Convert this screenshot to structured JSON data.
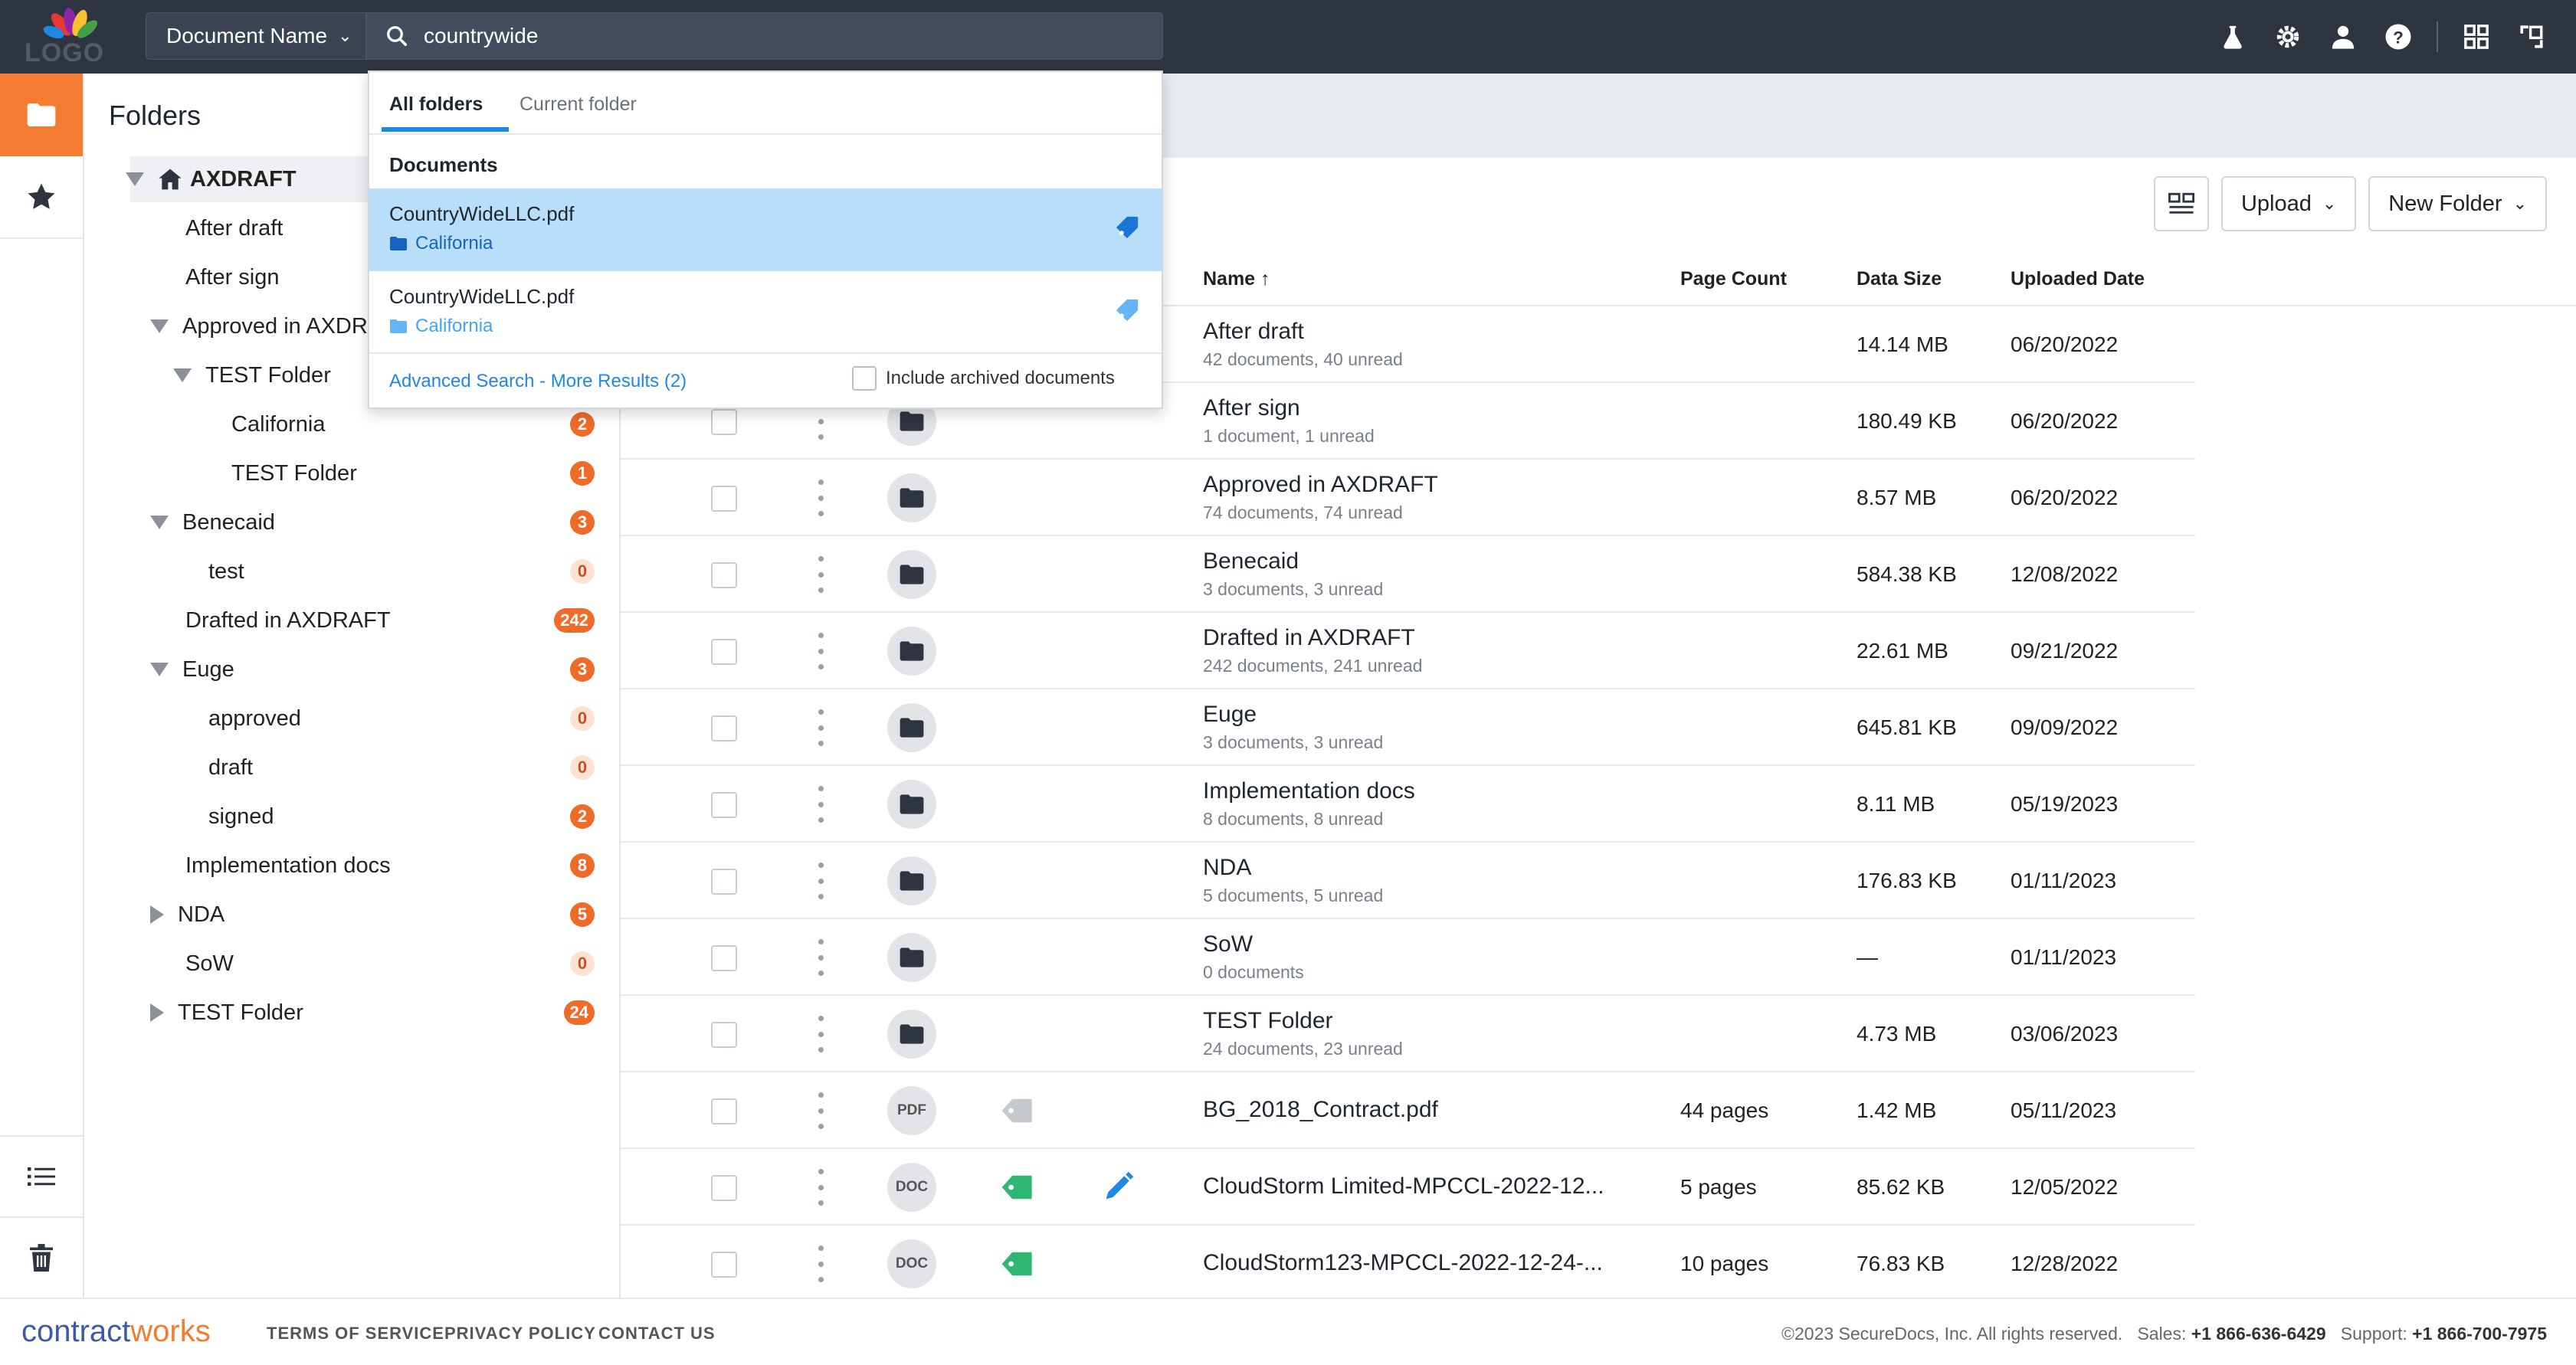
{
  "colors": {
    "accent": "#f47c30",
    "link": "#1e88e5",
    "topbar": "#2e3440",
    "selected": "#b9def9",
    "badge": "#f06a2a",
    "tag_green": "#2eb872"
  },
  "topbar": {
    "logo_text": "LOGO",
    "doc_select_label": "Document Name",
    "search_value": "countrywide",
    "icons": [
      "flask-icon",
      "gear-icon",
      "user-icon",
      "help-icon",
      "apps-icon",
      "expand-icon"
    ]
  },
  "folders": {
    "title": "Folders",
    "items": [
      {
        "label": "AXDRAFT",
        "level": 0,
        "expander": "down",
        "badge": ""
      },
      {
        "label": "After draft",
        "level": 1,
        "expander": "",
        "badge": ""
      },
      {
        "label": "After sign",
        "level": 1,
        "expander": "",
        "badge": ""
      },
      {
        "label": "Approved in AXDRAFT",
        "level": 1,
        "expander": "down",
        "badge": ""
      },
      {
        "label": "TEST Folder",
        "level": 2,
        "expander": "down",
        "badge": ""
      },
      {
        "label": "California",
        "level": 3,
        "expander": "",
        "badge": "2"
      },
      {
        "label": "TEST Folder",
        "level": 3,
        "expander": "",
        "badge": "1"
      },
      {
        "label": "Benecaid",
        "level": 1,
        "expander": "down",
        "badge": "3"
      },
      {
        "label": "test",
        "level": 2,
        "expander": "",
        "badge": "0"
      },
      {
        "label": "Drafted in AXDRAFT",
        "level": 1,
        "expander": "",
        "badge": "242"
      },
      {
        "label": "Euge",
        "level": 1,
        "expander": "down",
        "badge": "3"
      },
      {
        "label": "approved",
        "level": 2,
        "expander": "",
        "badge": "0"
      },
      {
        "label": "draft",
        "level": 2,
        "expander": "",
        "badge": "0"
      },
      {
        "label": "signed",
        "level": 2,
        "expander": "",
        "badge": "2"
      },
      {
        "label": "Implementation docs",
        "level": 1,
        "expander": "",
        "badge": "8"
      },
      {
        "label": "NDA",
        "level": 1,
        "expander": "right",
        "badge": "5"
      },
      {
        "label": "SoW",
        "level": 1,
        "expander": "",
        "badge": "0"
      },
      {
        "label": "TEST Folder",
        "level": 1,
        "expander": "right",
        "badge": "24"
      }
    ]
  },
  "toolbar": {
    "upload_label": "Upload",
    "new_folder_label": "New Folder"
  },
  "table": {
    "headers": {
      "name": "Name",
      "sort_arrow": "↑",
      "page_count": "Page Count",
      "data_size": "Data Size",
      "uploaded_date": "Uploaded Date"
    },
    "rows": [
      {
        "type": "folder",
        "name": "After draft",
        "sub": "42 documents, 40 unread",
        "pages": "",
        "size": "14.14 MB",
        "date": "06/20/2022",
        "tag": "",
        "sign": false
      },
      {
        "type": "folder",
        "name": "After sign",
        "sub": "1 document, 1 unread",
        "pages": "",
        "size": "180.49 KB",
        "date": "06/20/2022",
        "tag": "",
        "sign": false
      },
      {
        "type": "folder",
        "name": "Approved in AXDRAFT",
        "sub": "74 documents, 74 unread",
        "pages": "",
        "size": "8.57 MB",
        "date": "06/20/2022",
        "tag": "",
        "sign": false
      },
      {
        "type": "folder",
        "name": "Benecaid",
        "sub": "3 documents, 3 unread",
        "pages": "",
        "size": "584.38 KB",
        "date": "12/08/2022",
        "tag": "",
        "sign": false
      },
      {
        "type": "folder",
        "name": "Drafted in AXDRAFT",
        "sub": "242 documents, 241 unread",
        "pages": "",
        "size": "22.61 MB",
        "date": "09/21/2022",
        "tag": "",
        "sign": false
      },
      {
        "type": "folder",
        "name": "Euge",
        "sub": "3 documents, 3 unread",
        "pages": "",
        "size": "645.81 KB",
        "date": "09/09/2022",
        "tag": "",
        "sign": false
      },
      {
        "type": "folder",
        "name": "Implementation docs",
        "sub": "8 documents, 8 unread",
        "pages": "",
        "size": "8.11 MB",
        "date": "05/19/2023",
        "tag": "",
        "sign": false
      },
      {
        "type": "folder",
        "name": "NDA",
        "sub": "5 documents, 5 unread",
        "pages": "",
        "size": "176.83 KB",
        "date": "01/11/2023",
        "tag": "",
        "sign": false
      },
      {
        "type": "folder",
        "name": "SoW",
        "sub": "0 documents",
        "pages": "",
        "size": "—",
        "date": "01/11/2023",
        "tag": "",
        "sign": false
      },
      {
        "type": "folder",
        "name": "TEST Folder",
        "sub": "24 documents, 23 unread",
        "pages": "",
        "size": "4.73 MB",
        "date": "03/06/2023",
        "tag": "",
        "sign": false
      },
      {
        "type": "PDF",
        "name": "BG_2018_Contract.pdf",
        "sub": "",
        "pages": "44 pages",
        "size": "1.42 MB",
        "date": "05/11/2023",
        "tag": "gray",
        "sign": false
      },
      {
        "type": "DOC",
        "name": "CloudStorm Limited-MPCCL-2022-12...",
        "sub": "",
        "pages": "5 pages",
        "size": "85.62 KB",
        "date": "12/05/2022",
        "tag": "green",
        "sign": true
      },
      {
        "type": "DOC",
        "name": "CloudStorm123-MPCCL-2022-12-24-...",
        "sub": "",
        "pages": "10 pages",
        "size": "76.83 KB",
        "date": "12/28/2022",
        "tag": "green",
        "sign": false
      }
    ]
  },
  "dropdown": {
    "tab_all": "All folders",
    "tab_current": "Current folder",
    "section_label": "Documents",
    "results": [
      {
        "name": "CountryWideLLC.pdf",
        "folder": "California",
        "selected": true
      },
      {
        "name": "CountryWideLLC.pdf",
        "folder": "California",
        "selected": false
      }
    ],
    "advanced_link": "Advanced Search - More Results (2)",
    "archived_label": "Include archived documents"
  },
  "footer": {
    "brand_a": "contract",
    "brand_b": "works",
    "links": [
      "TERMS OF SERVICE",
      "PRIVACY POLICY",
      "CONTACT US"
    ],
    "copyright": "©2023 SecureDocs, Inc. All rights reserved.",
    "sales_label": "Sales:",
    "sales_phone": "+1 866-636-6429",
    "support_label": "Support:",
    "support_phone": "+1 866-700-7975"
  }
}
